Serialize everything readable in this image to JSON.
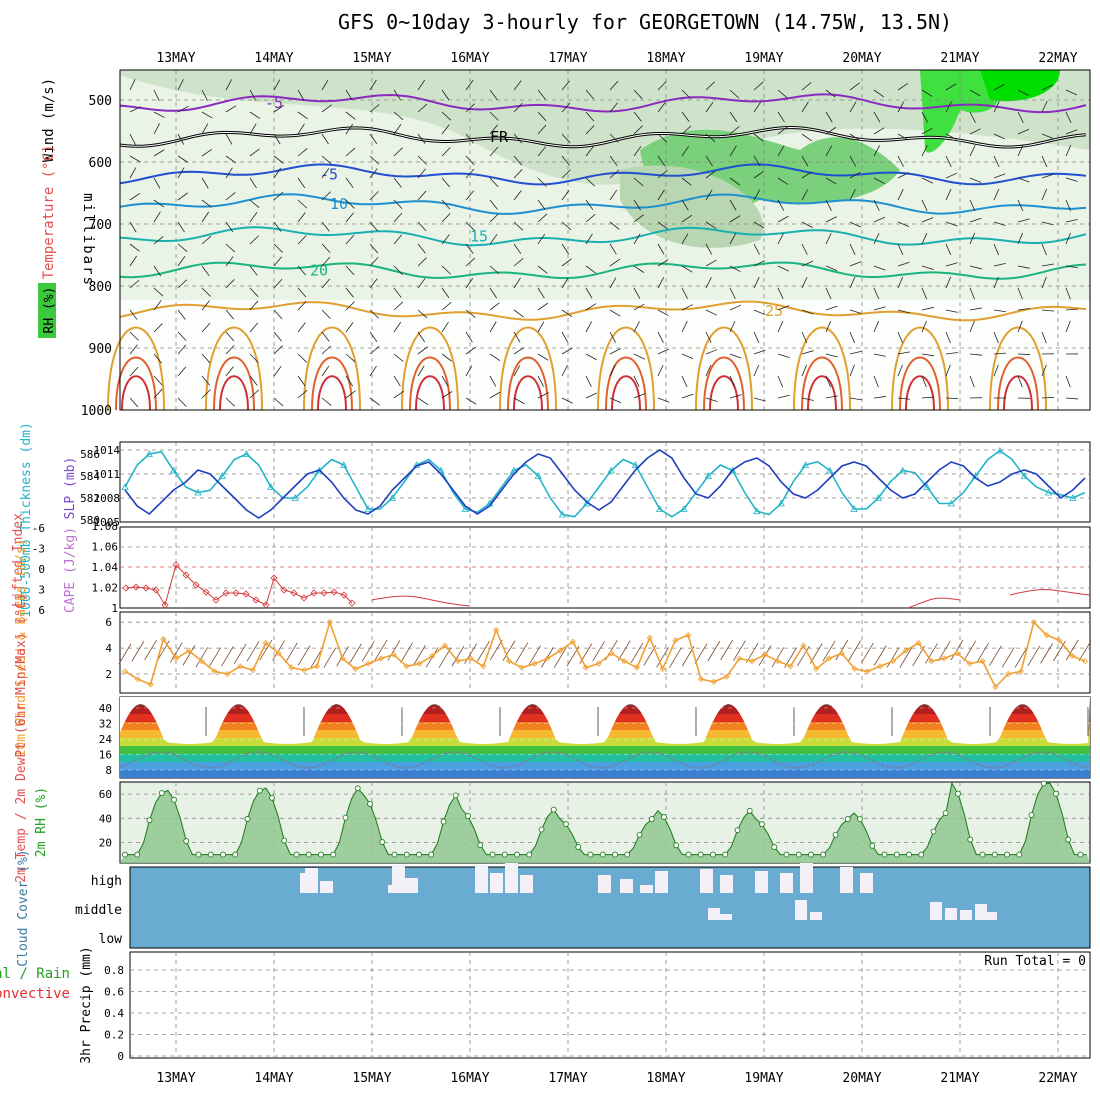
{
  "title": "GFS 0~10day 3-hourly for GEORGETOWN (14.75W, 13.5N)",
  "dates": [
    "13MAY",
    "14MAY",
    "15MAY",
    "16MAY",
    "17MAY",
    "18MAY",
    "19MAY",
    "20MAY",
    "21MAY",
    "22MAY"
  ],
  "colors": {
    "grid": "#888888",
    "slp": "#1f3fbf",
    "thick": "#22b4c8",
    "li": "#d23a3a",
    "wind": "#f0a030",
    "barb": "#7a4a2a",
    "rh": "#22a022",
    "cloud": "#6aabd2",
    "cloudbar": "#f3f0f7",
    "fr": "#000000"
  },
  "chart_data": [
    {
      "type": "heatmap",
      "name": "upper-air cross section",
      "ylabel": "millibars",
      "ylabel_left": "Wind (m/s)",
      "ylabel_left2": "Temperature (°C)",
      "ylabel_left3": "RH (%)",
      "yticks": [
        500,
        600,
        700,
        800,
        900,
        1000
      ],
      "ylim": [
        1000,
        450
      ],
      "isotherms": [
        {
          "label": "-5",
          "level": 505,
          "color": "#8a2ac0"
        },
        {
          "label": "FR",
          "level": 560,
          "color": "#000000"
        },
        {
          "label": "-5",
          "level": 620,
          "color": "#2050d0"
        },
        {
          "label": "10",
          "level": 668,
          "color": "#1e90d0"
        },
        {
          "label": "15",
          "level": 720,
          "color": "#1ab0b0"
        },
        {
          "label": "20",
          "level": 775,
          "color": "#1ab480"
        },
        {
          "label": "25",
          "level": 840,
          "color": "#e0a030"
        }
      ]
    },
    {
      "type": "line",
      "name": "SLP and thickness",
      "ylabel": "1000-500mb Thickness (dm)",
      "ylabel_right": "SLP (mb)",
      "yticks_left": [
        580,
        582,
        584,
        586
      ],
      "yticks_right": [
        1005,
        1008,
        1011,
        1014
      ],
      "x": [
        0,
        1,
        2,
        3,
        4,
        5,
        6,
        7,
        8,
        9,
        10,
        11,
        12,
        13,
        14,
        15,
        16,
        17,
        18,
        19,
        20,
        21,
        22,
        23,
        24,
        25,
        26,
        27,
        28,
        29,
        30,
        31,
        32,
        33,
        34,
        35,
        36,
        37,
        38,
        39,
        40,
        41,
        42,
        43,
        44,
        45,
        46,
        47,
        48,
        49,
        50,
        51,
        52,
        53,
        54,
        55,
        56,
        57,
        58,
        59,
        60,
        61,
        62,
        63,
        64,
        65,
        66,
        67,
        68,
        69,
        70,
        71,
        72,
        73,
        74,
        75,
        76,
        77,
        78,
        79
      ],
      "series": [
        {
          "name": "SLP",
          "values": [
            1009,
            1007,
            1006,
            1007.5,
            1009,
            1010,
            1011.5,
            1011,
            1009.5,
            1008,
            1006.5,
            1005.5,
            1006.5,
            1008,
            1009.5,
            1011,
            1011.5,
            1010,
            1008,
            1006.5,
            1006,
            1007,
            1009,
            1010.5,
            1012,
            1012.5,
            1011,
            1009,
            1007,
            1006,
            1007,
            1009,
            1011,
            1012.5,
            1013.5,
            1013,
            1011,
            1009,
            1007.5,
            1006.5,
            1007.5,
            1009.5,
            1011.5,
            1013,
            1014,
            1013,
            1010.5,
            1008.5,
            1008,
            1009.5,
            1011.5,
            1012.5,
            1013,
            1012,
            1010,
            1008.5,
            1008,
            1009,
            1010.5,
            1012,
            1012.5,
            1012,
            1010.5,
            1009,
            1008,
            1008.5,
            1010,
            1011.5,
            1012.5,
            1012,
            1010.5,
            1009.5,
            1010,
            1011,
            1011.5,
            1011,
            1009.5,
            1008,
            1009,
            1010.5
          ]
        },
        {
          "name": "Thickness",
          "values": [
            583,
            585,
            586,
            586.2,
            584.5,
            583,
            582.5,
            582.7,
            584,
            585.5,
            586,
            585,
            583,
            582,
            582,
            583,
            584.5,
            585.5,
            585,
            583,
            581,
            581,
            582,
            583.5,
            585,
            585.5,
            584.5,
            582.5,
            581,
            580.7,
            581.5,
            583,
            584.5,
            585,
            584,
            582,
            580.5,
            580.3,
            581.5,
            583,
            584.5,
            585.5,
            585,
            583,
            581,
            580.3,
            581,
            582.5,
            584,
            585,
            584.5,
            582.5,
            580.8,
            580.5,
            581.5,
            583.5,
            585,
            585.3,
            584.5,
            582.5,
            581,
            581,
            582,
            583.5,
            584.5,
            584.3,
            583,
            581.5,
            581.5,
            582.5,
            584,
            585.5,
            586.3,
            585.5,
            584,
            583,
            582.5,
            582.3,
            582,
            582.5
          ]
        }
      ]
    },
    {
      "type": "line",
      "name": "Lifted index / CAPE",
      "ylabel": "Lifted Index",
      "ylabel_right": "CAPE (J/kg)",
      "yticks_left": [
        -6,
        -3,
        0,
        3,
        6
      ],
      "yticks_right": [
        1,
        1.02,
        1.04,
        1.06,
        1.08
      ]
    },
    {
      "type": "line",
      "name": "10m wind",
      "ylabel": "10m Wind Speed & Barbs (m/s)",
      "yticks": [
        2,
        4,
        6
      ],
      "series": [
        {
          "name": "Speed",
          "values": [
            2.2,
            1.6,
            1.2,
            4.7,
            3.2,
            3.8,
            3.0,
            2.2,
            2.0,
            2.6,
            2.3,
            4.4,
            3.6,
            2.5,
            2.3,
            2.6,
            6.0,
            3.2,
            2.4,
            2.8,
            3.2,
            3.5,
            2.6,
            2.8,
            3.4,
            4.2,
            3.0,
            3.2,
            2.6,
            5.4,
            3.0,
            2.5,
            2.8,
            3.2,
            3.8,
            4.5,
            2.5,
            2.8,
            3.6,
            3.0,
            2.5,
            4.8,
            2.4,
            4.6,
            5.0,
            1.6,
            1.4,
            1.8,
            3.2,
            3.0,
            3.5,
            3.0,
            2.6,
            4.2,
            2.4,
            3.2,
            3.6,
            2.4,
            2.2,
            2.6,
            3.0,
            3.8,
            4.4,
            3.0,
            3.2,
            3.6,
            2.8,
            3.0,
            1.0,
            2.0,
            2.2,
            6.0,
            5.0,
            4.6,
            3.4,
            3.0
          ]
        }
      ]
    },
    {
      "type": "area",
      "name": "2m temperature",
      "ylabel": "2m Temp / 2m DewPt (6hr Min/Max) (°C)",
      "yticks": [
        8,
        16,
        24,
        32,
        40
      ]
    },
    {
      "type": "area",
      "name": "2m RH",
      "ylabel": "2m RH (%)",
      "yticks": [
        20,
        40,
        60
      ]
    },
    {
      "type": "bar",
      "name": "cloud cover",
      "ylabel": "Cloud Cover (%)",
      "levels": [
        "high",
        "middle",
        "low"
      ]
    },
    {
      "type": "bar",
      "name": "precipitation",
      "ylabel": "3hr Precip (mm)",
      "ylabel_left": "Total / Rain",
      "ylabel_left2": "Convective",
      "yticks": [
        0,
        0.2,
        0.4,
        0.6,
        0.8
      ],
      "annotation": "Run Total = 0"
    }
  ]
}
